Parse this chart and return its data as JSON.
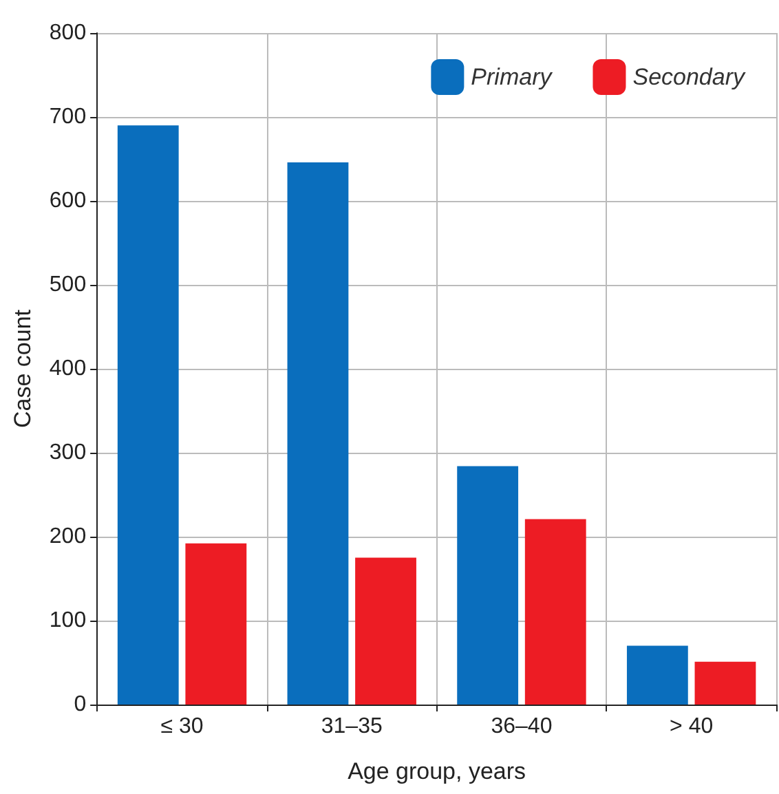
{
  "chart_data": {
    "type": "bar",
    "xlabel": "Age group, years",
    "ylabel": "Case count",
    "categories": [
      "≤ 30",
      "31–35",
      "36–40",
      "> 40"
    ],
    "series": [
      {
        "name": "Primary",
        "color": "#0a6ebd",
        "values": [
          690,
          646,
          284,
          70
        ]
      },
      {
        "name": "Secondary",
        "color": "#ed1c24",
        "values": [
          192,
          175,
          221,
          51
        ]
      }
    ],
    "ylim": [
      0,
      800
    ],
    "yticks": [
      0,
      100,
      200,
      300,
      400,
      500,
      600,
      700,
      800
    ],
    "grid": true,
    "legend": "top right"
  }
}
